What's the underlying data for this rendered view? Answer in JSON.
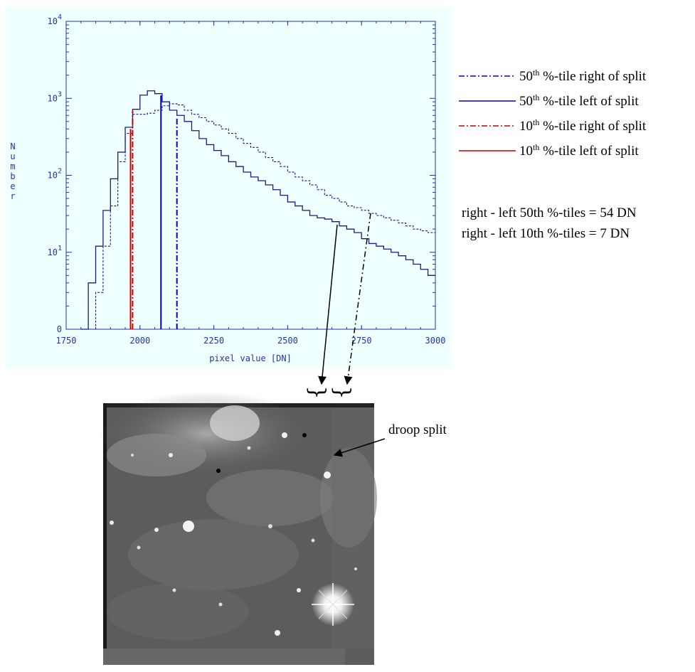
{
  "chart_data": {
    "type": "histogram",
    "xlabel": "pixel value [DN]",
    "ylabel": "Number",
    "xlim": [
      1750,
      3000
    ],
    "x_ticks": [
      "1750",
      "2000",
      "2250",
      "2500",
      "2750",
      "3000"
    ],
    "y_scale": "log",
    "y_ticks": [
      "0",
      "10^1",
      "10^2",
      "10^3",
      "10^4"
    ],
    "bin_width": 25,
    "x_bins": [
      1800,
      1825,
      1850,
      1875,
      1900,
      1925,
      1950,
      1975,
      2000,
      2025,
      2050,
      2075,
      2100,
      2125,
      2150,
      2175,
      2200,
      2225,
      2250,
      2275,
      2300,
      2325,
      2350,
      2375,
      2400,
      2425,
      2450,
      2475,
      2500,
      2525,
      2550,
      2575,
      2600,
      2625,
      2650,
      2675,
      2700,
      2725,
      2750,
      2775,
      2800,
      2825,
      2850,
      2875,
      2900,
      2925,
      2950,
      2975
    ],
    "series": [
      {
        "name": "left of split",
        "style": "solid",
        "color": "#1a1a8c",
        "values": [
          1,
          4,
          12,
          35,
          90,
          200,
          420,
          720,
          1100,
          1250,
          1150,
          900,
          700,
          600,
          500,
          380,
          300,
          250,
          210,
          180,
          150,
          130,
          110,
          95,
          85,
          75,
          65,
          55,
          45,
          40,
          35,
          30,
          28,
          27,
          25,
          22,
          20,
          18,
          15,
          13,
          12,
          11,
          10,
          9,
          8,
          7,
          6,
          5
        ]
      },
      {
        "name": "right of split",
        "style": "dotted",
        "color": "#1a1a8c",
        "values": [
          0.4,
          1,
          3,
          12,
          40,
          150,
          350,
          620,
          620,
          640,
          700,
          800,
          850,
          820,
          700,
          620,
          560,
          500,
          450,
          400,
          350,
          300,
          260,
          230,
          200,
          170,
          150,
          130,
          110,
          95,
          85,
          75,
          65,
          55,
          50,
          45,
          40,
          38,
          35,
          32,
          30,
          28,
          26,
          24,
          22,
          20,
          19,
          18
        ]
      }
    ],
    "percentile_lines": [
      {
        "name": "50th %-tile right of split",
        "x": 2125,
        "color": "#0000cc",
        "style": "dashdot"
      },
      {
        "name": "50th %-tile left of split",
        "x": 2071,
        "color": "#0000cc",
        "style": "solid"
      },
      {
        "name": "10th %-tile right of split",
        "x": 1975,
        "color": "#cc0000",
        "style": "dashdot"
      },
      {
        "name": "10th %-tile left of split",
        "x": 1968,
        "color": "#cc0000",
        "style": "solid"
      }
    ],
    "legend": [
      {
        "label": "50",
        "sup": "th",
        "rest": " %-tile right of split",
        "color": "#0000cc",
        "style": "dashdot"
      },
      {
        "label": "50",
        "sup": "th",
        "rest": " %-tile left of split",
        "color": "#0000cc",
        "style": "solid"
      },
      {
        "label": "10",
        "sup": "th",
        "rest": " %-tile right of split",
        "color": "#cc0000",
        "style": "dashdot"
      },
      {
        "label": "10",
        "sup": "th",
        "rest": " %-tile left of split",
        "color": "#cc0000",
        "style": "solid"
      }
    ],
    "notes": [
      "right - left 50th %-tiles = 54 DN",
      "right - left 10th %-tiles = 7 DN"
    ],
    "image_annotation": "droop split",
    "colors": {
      "panel_bg": "#f0ffff",
      "axis": "#2233aa"
    }
  }
}
